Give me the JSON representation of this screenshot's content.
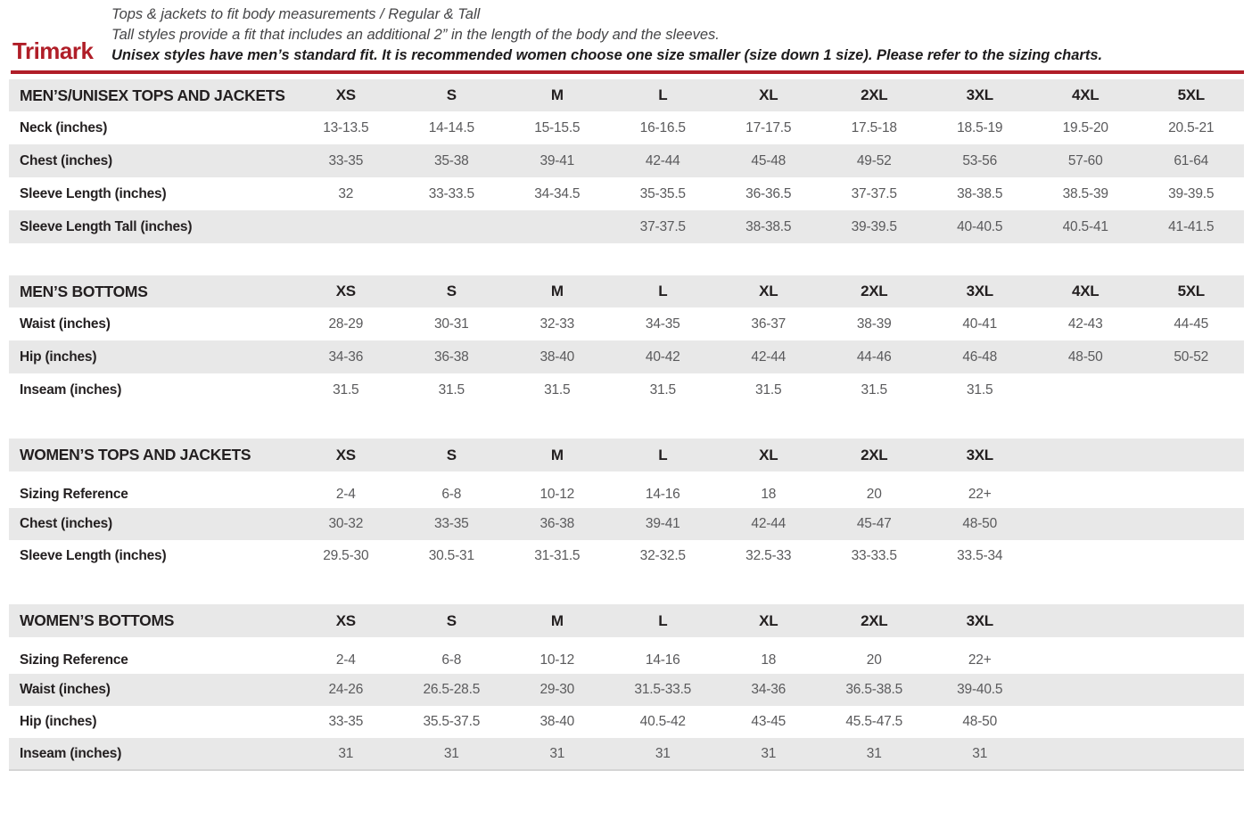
{
  "header": {
    "brand": "Trimark",
    "line1": "Tops & jackets to fit body measurements / Regular & Tall",
    "line2": "Tall styles provide a fit that includes an additional 2” in the length of the body and the sleeves.",
    "line3": "Unisex styles have men’s standard fit. It is recommended women choose one size smaller (size down 1 size).  Please refer to the sizing charts.",
    "accent_color": "#b01e28",
    "stripe_color": "#e8e8e8"
  },
  "tables": [
    {
      "id": "mens-unisex-tops-and-jackets",
      "title": "MEN’S/UNISEX TOPS AND JACKETS",
      "header_gap": false,
      "columns": [
        "XS",
        "S",
        "M",
        "L",
        "XL",
        "2XL",
        "3XL",
        "4XL",
        "5XL"
      ],
      "rows": [
        {
          "label": "Neck (inches)",
          "values": [
            "13-13.5",
            "14-14.5",
            "15-15.5",
            "16-16.5",
            "17-17.5",
            "17.5-18",
            "18.5-19",
            "19.5-20",
            "20.5-21"
          ]
        },
        {
          "label": "Chest (inches)",
          "values": [
            "33-35",
            "35-38",
            "39-41",
            "42-44",
            "45-48",
            "49-52",
            "53-56",
            "57-60",
            "61-64"
          ]
        },
        {
          "label": "Sleeve Length (inches)",
          "values": [
            "32",
            "33-33.5",
            "34-34.5",
            "35-35.5",
            "36-36.5",
            "37-37.5",
            "38-38.5",
            "38.5-39",
            "39-39.5"
          ]
        },
        {
          "label": "Sleeve Length Tall (inches)",
          "values": [
            "",
            "",
            "",
            "37-37.5",
            "38-38.5",
            "39-39.5",
            "40-40.5",
            "40.5-41",
            "41-41.5"
          ]
        }
      ]
    },
    {
      "id": "mens-bottoms",
      "title": "MEN’S BOTTOMS",
      "header_gap": false,
      "columns": [
        "XS",
        "S",
        "M",
        "L",
        "XL",
        "2XL",
        "3XL",
        "4XL",
        "5XL"
      ],
      "rows": [
        {
          "label": "Waist (inches)",
          "values": [
            "28-29",
            "30-31",
            "32-33",
            "34-35",
            "36-37",
            "38-39",
            "40-41",
            "42-43",
            "44-45"
          ]
        },
        {
          "label": "Hip (inches)",
          "values": [
            "34-36",
            "36-38",
            "38-40",
            "40-42",
            "42-44",
            "44-46",
            "46-48",
            "48-50",
            "50-52"
          ]
        },
        {
          "label": "Inseam (inches)",
          "values": [
            "31.5",
            "31.5",
            "31.5",
            "31.5",
            "31.5",
            "31.5",
            "31.5",
            "",
            ""
          ]
        }
      ]
    },
    {
      "id": "womens-tops-and-jackets",
      "title": "WOMEN’S TOPS AND JACKETS",
      "header_gap": true,
      "columns": [
        "XS",
        "S",
        "M",
        "L",
        "XL",
        "2XL",
        "3XL",
        "",
        ""
      ],
      "rows": [
        {
          "label": "Sizing Reference",
          "values": [
            "2-4",
            "6-8",
            "10-12",
            "14-16",
            "18",
            "20",
            "22+",
            "",
            ""
          ]
        },
        {
          "label": "Chest (inches)",
          "values": [
            "30-32",
            "33-35",
            "36-38",
            "39-41",
            "42-44",
            "45-47",
            "48-50",
            "",
            ""
          ]
        },
        {
          "label": "Sleeve Length (inches)",
          "values": [
            "29.5-30",
            "30.5-31",
            "31-31.5",
            "32-32.5",
            "32.5-33",
            "33-33.5",
            "33.5-34",
            "",
            ""
          ]
        }
      ]
    },
    {
      "id": "womens-bottoms",
      "title": "WOMEN’S BOTTOMS",
      "header_gap": true,
      "columns": [
        "XS",
        "S",
        "M",
        "L",
        "XL",
        "2XL",
        "3XL",
        "",
        ""
      ],
      "rows": [
        {
          "label": "Sizing Reference",
          "values": [
            "2-4",
            "6-8",
            "10-12",
            "14-16",
            "18",
            "20",
            "22+",
            "",
            ""
          ]
        },
        {
          "label": "Waist (inches)",
          "values": [
            "24-26",
            "26.5-28.5",
            "29-30",
            "31.5-33.5",
            "34-36",
            "36.5-38.5",
            "39-40.5",
            "",
            ""
          ]
        },
        {
          "label": "Hip (inches)",
          "values": [
            "33-35",
            "35.5-37.5",
            "38-40",
            "40.5-42",
            "43-45",
            "45.5-47.5",
            "48-50",
            "",
            ""
          ]
        },
        {
          "label": "Inseam (inches)",
          "values": [
            "31",
            "31",
            "31",
            "31",
            "31",
            "31",
            "31",
            "",
            ""
          ]
        }
      ]
    }
  ]
}
